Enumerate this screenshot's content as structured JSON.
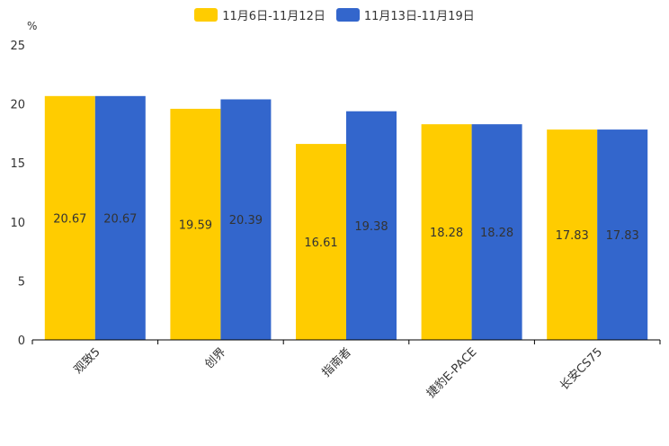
{
  "chart_data": {
    "type": "bar",
    "ylabel": "%",
    "ylim": [
      0,
      25
    ],
    "yticks": [
      "0",
      "5",
      "10",
      "15",
      "20",
      "25"
    ],
    "categories": [
      "观致5",
      "创界",
      "指南者",
      "捷豹E-PACE",
      "长安CS75"
    ],
    "series": [
      {
        "name": "11月6日-11月12日",
        "color": "#FFCC00",
        "values": [
          20.67,
          19.59,
          16.61,
          18.28,
          17.83
        ],
        "labels": [
          "20.67",
          "19.59",
          "16.61",
          "18.28",
          "17.83"
        ]
      },
      {
        "name": "11月13日-11月19日",
        "color": "#3366CC",
        "values": [
          20.67,
          20.39,
          19.38,
          18.28,
          17.83
        ],
        "labels": [
          "20.67",
          "20.39",
          "19.38",
          "18.28",
          "17.83"
        ]
      }
    ]
  }
}
